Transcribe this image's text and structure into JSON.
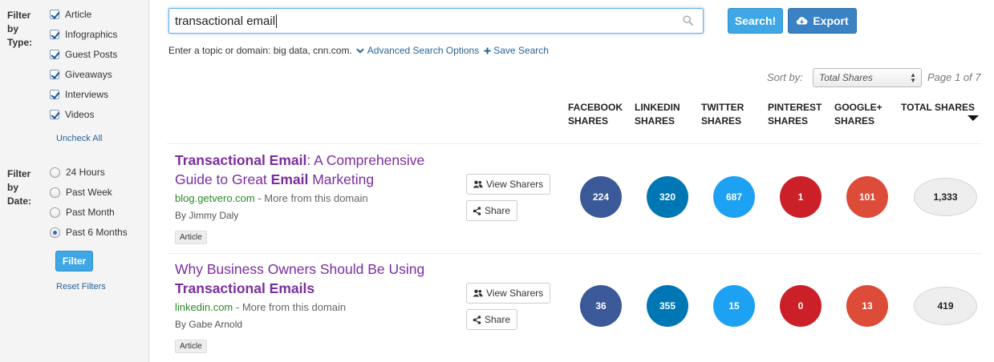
{
  "sidebar": {
    "type_label": "Filter\nby\nType:",
    "types": [
      "Article",
      "Infographics",
      "Guest Posts",
      "Giveaways",
      "Interviews",
      "Videos"
    ],
    "uncheck_all": "Uncheck All",
    "date_label": "Filter\nby\nDate:",
    "dates": [
      "24 Hours",
      "Past Week",
      "Past Month",
      "Past 6 Months"
    ],
    "selected_date": "Past 6 Months",
    "filter_button": "Filter",
    "reset_filters": "Reset Filters"
  },
  "search": {
    "value": "transactional email",
    "search_button": "Search!",
    "export_button": "Export"
  },
  "hint": {
    "text": "Enter a topic or domain: big data, cnn.com.",
    "advanced": "Advanced Search Options",
    "save": "Save Search"
  },
  "sort": {
    "label": "Sort by:",
    "selected": "Total Shares",
    "page_info": "Page 1 of 7"
  },
  "columns": {
    "facebook": "FACEBOOK\nSHARES",
    "linkedin": "LINKEDIN\nSHARES",
    "twitter": "TWITTER\nSHARES",
    "pinterest": "PINTEREST\nSHARES",
    "googleplus": "GOOGLE+\nSHARES",
    "total": "TOTAL SHARES"
  },
  "colors": {
    "facebook": "#3b5998",
    "linkedin": "#0077b5",
    "twitter": "#1da1f2",
    "pinterest": "#cb2027",
    "googleplus": "#dd4b39",
    "title": "#7b2d9e",
    "domain": "#2a8a2a",
    "accent": "#3fa7e6"
  },
  "row_buttons": {
    "view_sharers": "View Sharers",
    "share": "Share"
  },
  "results": [
    {
      "title_html": "<b>Transactional Email</b>: A Comprehensive Guide to Great <b>Email</b> Marketing",
      "title": "Transactional Email: A Comprehensive Guide to Great Email Marketing",
      "domain": "blog.getvero.com",
      "more": " - More from this domain",
      "author": "By Jimmy Daly",
      "tag": "Article",
      "facebook": "224",
      "linkedin": "320",
      "twitter": "687",
      "pinterest": "1",
      "googleplus": "101",
      "total": "1,333"
    },
    {
      "title_html": "Why Business Owners Should Be Using <b>Transactional Emails</b>",
      "title": "Why Business Owners Should Be Using Transactional Emails",
      "domain": "linkedin.com",
      "more": " - More from this domain",
      "author": "By Gabe Arnold",
      "tag": "Article",
      "facebook": "36",
      "linkedin": "355",
      "twitter": "15",
      "pinterest": "0",
      "googleplus": "13",
      "total": "419"
    }
  ]
}
